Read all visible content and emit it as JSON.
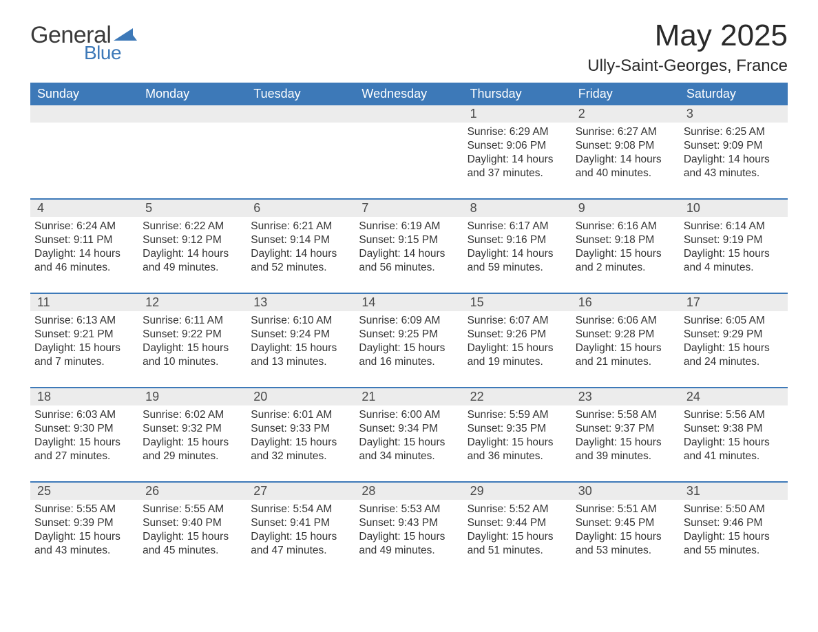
{
  "logo": {
    "text_general": "General",
    "text_blue": "Blue",
    "icon_color": "#3d79b8"
  },
  "title": "May 2025",
  "location": "Ully-Saint-Georges, France",
  "colors": {
    "header_bg": "#3d79b8",
    "header_text": "#ffffff",
    "daynum_bg": "#ececec",
    "border": "#3d79b8",
    "text": "#333333",
    "page_bg": "#ffffff"
  },
  "day_headers": [
    "Sunday",
    "Monday",
    "Tuesday",
    "Wednesday",
    "Thursday",
    "Friday",
    "Saturday"
  ],
  "weeks": [
    [
      {
        "day": "",
        "sunrise": "",
        "sunset": "",
        "daylight": ""
      },
      {
        "day": "",
        "sunrise": "",
        "sunset": "",
        "daylight": ""
      },
      {
        "day": "",
        "sunrise": "",
        "sunset": "",
        "daylight": ""
      },
      {
        "day": "",
        "sunrise": "",
        "sunset": "",
        "daylight": ""
      },
      {
        "day": "1",
        "sunrise": "Sunrise: 6:29 AM",
        "sunset": "Sunset: 9:06 PM",
        "daylight": "Daylight: 14 hours and 37 minutes."
      },
      {
        "day": "2",
        "sunrise": "Sunrise: 6:27 AM",
        "sunset": "Sunset: 9:08 PM",
        "daylight": "Daylight: 14 hours and 40 minutes."
      },
      {
        "day": "3",
        "sunrise": "Sunrise: 6:25 AM",
        "sunset": "Sunset: 9:09 PM",
        "daylight": "Daylight: 14 hours and 43 minutes."
      }
    ],
    [
      {
        "day": "4",
        "sunrise": "Sunrise: 6:24 AM",
        "sunset": "Sunset: 9:11 PM",
        "daylight": "Daylight: 14 hours and 46 minutes."
      },
      {
        "day": "5",
        "sunrise": "Sunrise: 6:22 AM",
        "sunset": "Sunset: 9:12 PM",
        "daylight": "Daylight: 14 hours and 49 minutes."
      },
      {
        "day": "6",
        "sunrise": "Sunrise: 6:21 AM",
        "sunset": "Sunset: 9:14 PM",
        "daylight": "Daylight: 14 hours and 52 minutes."
      },
      {
        "day": "7",
        "sunrise": "Sunrise: 6:19 AM",
        "sunset": "Sunset: 9:15 PM",
        "daylight": "Daylight: 14 hours and 56 minutes."
      },
      {
        "day": "8",
        "sunrise": "Sunrise: 6:17 AM",
        "sunset": "Sunset: 9:16 PM",
        "daylight": "Daylight: 14 hours and 59 minutes."
      },
      {
        "day": "9",
        "sunrise": "Sunrise: 6:16 AM",
        "sunset": "Sunset: 9:18 PM",
        "daylight": "Daylight: 15 hours and 2 minutes."
      },
      {
        "day": "10",
        "sunrise": "Sunrise: 6:14 AM",
        "sunset": "Sunset: 9:19 PM",
        "daylight": "Daylight: 15 hours and 4 minutes."
      }
    ],
    [
      {
        "day": "11",
        "sunrise": "Sunrise: 6:13 AM",
        "sunset": "Sunset: 9:21 PM",
        "daylight": "Daylight: 15 hours and 7 minutes."
      },
      {
        "day": "12",
        "sunrise": "Sunrise: 6:11 AM",
        "sunset": "Sunset: 9:22 PM",
        "daylight": "Daylight: 15 hours and 10 minutes."
      },
      {
        "day": "13",
        "sunrise": "Sunrise: 6:10 AM",
        "sunset": "Sunset: 9:24 PM",
        "daylight": "Daylight: 15 hours and 13 minutes."
      },
      {
        "day": "14",
        "sunrise": "Sunrise: 6:09 AM",
        "sunset": "Sunset: 9:25 PM",
        "daylight": "Daylight: 15 hours and 16 minutes."
      },
      {
        "day": "15",
        "sunrise": "Sunrise: 6:07 AM",
        "sunset": "Sunset: 9:26 PM",
        "daylight": "Daylight: 15 hours and 19 minutes."
      },
      {
        "day": "16",
        "sunrise": "Sunrise: 6:06 AM",
        "sunset": "Sunset: 9:28 PM",
        "daylight": "Daylight: 15 hours and 21 minutes."
      },
      {
        "day": "17",
        "sunrise": "Sunrise: 6:05 AM",
        "sunset": "Sunset: 9:29 PM",
        "daylight": "Daylight: 15 hours and 24 minutes."
      }
    ],
    [
      {
        "day": "18",
        "sunrise": "Sunrise: 6:03 AM",
        "sunset": "Sunset: 9:30 PM",
        "daylight": "Daylight: 15 hours and 27 minutes."
      },
      {
        "day": "19",
        "sunrise": "Sunrise: 6:02 AM",
        "sunset": "Sunset: 9:32 PM",
        "daylight": "Daylight: 15 hours and 29 minutes."
      },
      {
        "day": "20",
        "sunrise": "Sunrise: 6:01 AM",
        "sunset": "Sunset: 9:33 PM",
        "daylight": "Daylight: 15 hours and 32 minutes."
      },
      {
        "day": "21",
        "sunrise": "Sunrise: 6:00 AM",
        "sunset": "Sunset: 9:34 PM",
        "daylight": "Daylight: 15 hours and 34 minutes."
      },
      {
        "day": "22",
        "sunrise": "Sunrise: 5:59 AM",
        "sunset": "Sunset: 9:35 PM",
        "daylight": "Daylight: 15 hours and 36 minutes."
      },
      {
        "day": "23",
        "sunrise": "Sunrise: 5:58 AM",
        "sunset": "Sunset: 9:37 PM",
        "daylight": "Daylight: 15 hours and 39 minutes."
      },
      {
        "day": "24",
        "sunrise": "Sunrise: 5:56 AM",
        "sunset": "Sunset: 9:38 PM",
        "daylight": "Daylight: 15 hours and 41 minutes."
      }
    ],
    [
      {
        "day": "25",
        "sunrise": "Sunrise: 5:55 AM",
        "sunset": "Sunset: 9:39 PM",
        "daylight": "Daylight: 15 hours and 43 minutes."
      },
      {
        "day": "26",
        "sunrise": "Sunrise: 5:55 AM",
        "sunset": "Sunset: 9:40 PM",
        "daylight": "Daylight: 15 hours and 45 minutes."
      },
      {
        "day": "27",
        "sunrise": "Sunrise: 5:54 AM",
        "sunset": "Sunset: 9:41 PM",
        "daylight": "Daylight: 15 hours and 47 minutes."
      },
      {
        "day": "28",
        "sunrise": "Sunrise: 5:53 AM",
        "sunset": "Sunset: 9:43 PM",
        "daylight": "Daylight: 15 hours and 49 minutes."
      },
      {
        "day": "29",
        "sunrise": "Sunrise: 5:52 AM",
        "sunset": "Sunset: 9:44 PM",
        "daylight": "Daylight: 15 hours and 51 minutes."
      },
      {
        "day": "30",
        "sunrise": "Sunrise: 5:51 AM",
        "sunset": "Sunset: 9:45 PM",
        "daylight": "Daylight: 15 hours and 53 minutes."
      },
      {
        "day": "31",
        "sunrise": "Sunrise: 5:50 AM",
        "sunset": "Sunset: 9:46 PM",
        "daylight": "Daylight: 15 hours and 55 minutes."
      }
    ]
  ]
}
